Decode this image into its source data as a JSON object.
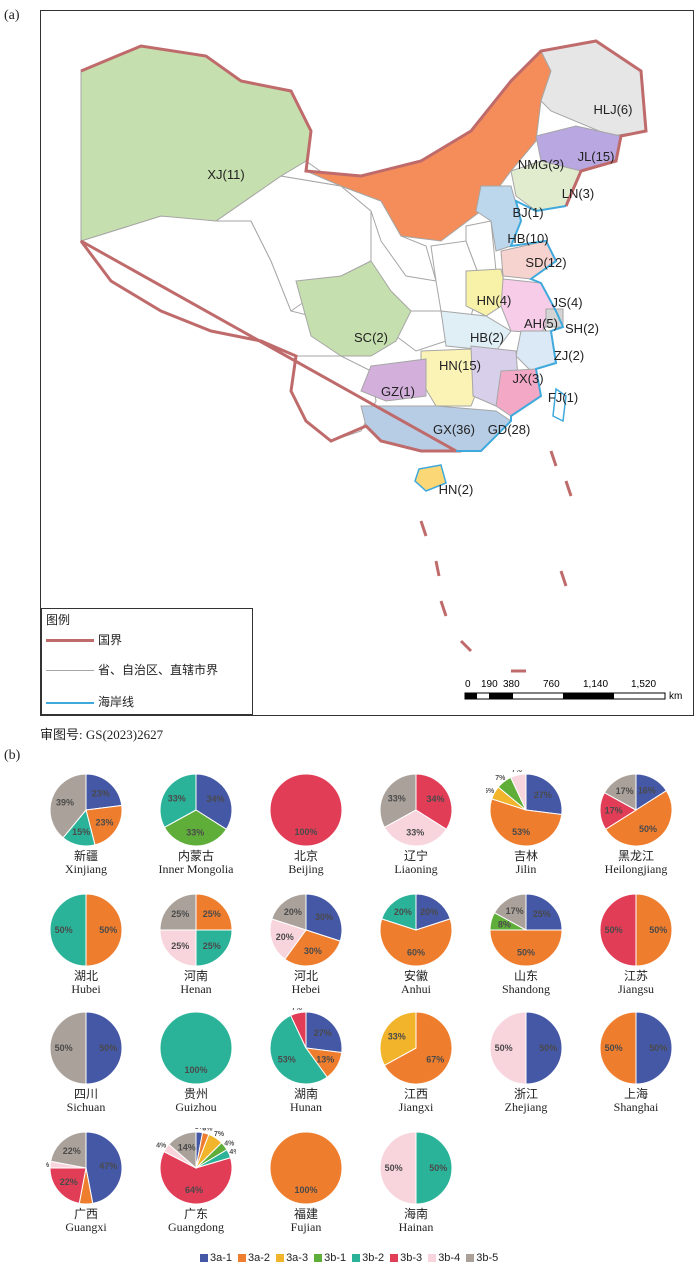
{
  "panel_a_label": "(a)",
  "panel_b_label": "(b)",
  "map": {
    "regions": [
      {
        "label": "XJ(11)",
        "fill": "#c6dfae"
      },
      {
        "label": "HLJ(6)",
        "fill": "#e6e6e6"
      },
      {
        "label": "NMG(3)",
        "fill": "#f48d5a"
      },
      {
        "label": "JL(15)",
        "fill": "#b8a7e0"
      },
      {
        "label": "LN(3)",
        "fill": "#e1eccf"
      },
      {
        "label": "BJ(1)",
        "fill": "#bcd6ec"
      },
      {
        "label": "HB(10)",
        "fill": "#bcd6ec"
      },
      {
        "label": "SD(12)",
        "fill": "#f6d3cf"
      },
      {
        "label": "HN(4)",
        "fill": "#f8f1a8"
      },
      {
        "label": "JS(4)",
        "fill": "#f6cce8"
      },
      {
        "label": "AH(5)",
        "fill": "#f6cce8"
      },
      {
        "label": "SH(2)",
        "fill": "#d4d4d4"
      },
      {
        "label": "SC(2)",
        "fill": "#c6dfae"
      },
      {
        "label": "HB(2)",
        "fill": "#dfeff5"
      },
      {
        "label": "ZJ(2)",
        "fill": "#dbe8f5"
      },
      {
        "label": "HN(15)",
        "fill": "#fbf2b6"
      },
      {
        "label": "JX(3)",
        "fill": "#d8cfea"
      },
      {
        "label": "GZ(1)",
        "fill": "#d3b0dc"
      },
      {
        "label": "FJ(1)",
        "fill": "#f3a8c6"
      },
      {
        "label": "GX(36)",
        "fill": "#b7cde6"
      },
      {
        "label": "GD(28)",
        "fill": "#b7cde6"
      },
      {
        "label": "HN(2)",
        "fill": "#fbd776"
      }
    ],
    "legend": {
      "title": "图例",
      "items": [
        {
          "label": "国界",
          "color": "#c06b6b"
        },
        {
          "label": "省、自治区、直辖市界",
          "color": "#a6a6a6"
        },
        {
          "label": "海岸线",
          "color": "#3fa9dc"
        }
      ]
    },
    "scale": {
      "ticks": [
        "0",
        "190",
        "380",
        "760",
        "1,140",
        "1,520"
      ],
      "unit": "km"
    }
  },
  "caption": "审图号: GS(2023)2627",
  "colors": {
    "3a-1": "#4558a6",
    "3a-2": "#ee7d2e",
    "3a-3": "#f2b42a",
    "3b-1": "#5fae3a",
    "3b-2": "#2bb39a",
    "3b-3": "#e23d57",
    "3b-4": "#f8d4dc",
    "3b-5": "#aaa19a"
  },
  "chart_data": {
    "type": "pie",
    "categories": [
      "3a-1",
      "3a-2",
      "3a-3",
      "3b-1",
      "3b-2",
      "3b-3",
      "3b-4",
      "3b-5"
    ],
    "pies": [
      {
        "name_cn": "新疆",
        "name_en": "Xinjiang",
        "slices": [
          {
            "cat": "3a-1",
            "value": 23,
            "label": "23%"
          },
          {
            "cat": "3a-2",
            "value": 23,
            "label": "23%"
          },
          {
            "cat": "3b-2",
            "value": 15,
            "label": "15%"
          },
          {
            "cat": "3b-5",
            "value": 39,
            "label": "39%"
          }
        ]
      },
      {
        "name_cn": "内蒙古",
        "name_en": "Inner Mongolia",
        "slices": [
          {
            "cat": "3a-1",
            "value": 34,
            "label": "34%"
          },
          {
            "cat": "3b-1",
            "value": 33,
            "label": "33%"
          },
          {
            "cat": "3b-2",
            "value": 33,
            "label": "33%"
          }
        ]
      },
      {
        "name_cn": "北京",
        "name_en": "Beijing",
        "slices": [
          {
            "cat": "3b-3",
            "value": 100,
            "label": "100%"
          }
        ]
      },
      {
        "name_cn": "辽宁",
        "name_en": "Liaoning",
        "slices": [
          {
            "cat": "3b-3",
            "value": 34,
            "label": "34%"
          },
          {
            "cat": "3b-4",
            "value": 33,
            "label": "33%"
          },
          {
            "cat": "3b-5",
            "value": 33,
            "label": "33%"
          }
        ]
      },
      {
        "name_cn": "吉林",
        "name_en": "Jilin",
        "slices": [
          {
            "cat": "3a-1",
            "value": 27,
            "label": "27%"
          },
          {
            "cat": "3a-2",
            "value": 53,
            "label": "53%"
          },
          {
            "cat": "3a-3",
            "value": 6,
            "label": "6%"
          },
          {
            "cat": "3b-1",
            "value": 7,
            "label": "7%"
          },
          {
            "cat": "3b-4",
            "value": 7,
            "label": "7%"
          }
        ]
      },
      {
        "name_cn": "黑龙江",
        "name_en": "Heilongjiang",
        "slices": [
          {
            "cat": "3a-1",
            "value": 16,
            "label": "16%"
          },
          {
            "cat": "3a-2",
            "value": 50,
            "label": "50%"
          },
          {
            "cat": "3b-3",
            "value": 17,
            "label": "17%"
          },
          {
            "cat": "3b-5",
            "value": 17,
            "label": "17%"
          }
        ]
      },
      {
        "name_cn": "湖北",
        "name_en": "Hubei",
        "slices": [
          {
            "cat": "3a-2",
            "value": 50,
            "label": "50%"
          },
          {
            "cat": "3b-2",
            "value": 50,
            "label": "50%"
          }
        ]
      },
      {
        "name_cn": "河南",
        "name_en": "Henan",
        "slices": [
          {
            "cat": "3a-2",
            "value": 25,
            "label": "25%"
          },
          {
            "cat": "3b-2",
            "value": 25,
            "label": "25%"
          },
          {
            "cat": "3b-4",
            "value": 25,
            "label": "25%"
          },
          {
            "cat": "3b-5",
            "value": 25,
            "label": "25%"
          }
        ]
      },
      {
        "name_cn": "河北",
        "name_en": "Hebei",
        "slices": [
          {
            "cat": "3a-1",
            "value": 30,
            "label": "30%"
          },
          {
            "cat": "3a-2",
            "value": 30,
            "label": "30%"
          },
          {
            "cat": "3b-4",
            "value": 20,
            "label": "20%"
          },
          {
            "cat": "3b-5",
            "value": 20,
            "label": "20%"
          }
        ]
      },
      {
        "name_cn": "安徽",
        "name_en": "Anhui",
        "slices": [
          {
            "cat": "3a-1",
            "value": 20,
            "label": "20%"
          },
          {
            "cat": "3a-2",
            "value": 60,
            "label": "60%"
          },
          {
            "cat": "3b-2",
            "value": 20,
            "label": "20%"
          }
        ]
      },
      {
        "name_cn": "山东",
        "name_en": "Shandong",
        "slices": [
          {
            "cat": "3a-1",
            "value": 25,
            "label": "25%"
          },
          {
            "cat": "3a-2",
            "value": 50,
            "label": "50%"
          },
          {
            "cat": "3b-1",
            "value": 8,
            "label": "8%"
          },
          {
            "cat": "3b-5",
            "value": 17,
            "label": "17%"
          }
        ]
      },
      {
        "name_cn": "江苏",
        "name_en": "Jiangsu",
        "slices": [
          {
            "cat": "3a-2",
            "value": 50,
            "label": "50%"
          },
          {
            "cat": "3b-3",
            "value": 50,
            "label": "50%"
          }
        ]
      },
      {
        "name_cn": "四川",
        "name_en": "Sichuan",
        "slices": [
          {
            "cat": "3a-1",
            "value": 50,
            "label": "50%"
          },
          {
            "cat": "3b-5",
            "value": 50,
            "label": "50%"
          }
        ]
      },
      {
        "name_cn": "贵州",
        "name_en": "Guizhou",
        "slices": [
          {
            "cat": "3b-2",
            "value": 100,
            "label": "100%"
          }
        ]
      },
      {
        "name_cn": "湖南",
        "name_en": "Hunan",
        "slices": [
          {
            "cat": "3a-1",
            "value": 27,
            "label": "27%"
          },
          {
            "cat": "3a-2",
            "value": 13,
            "label": "13%"
          },
          {
            "cat": "3b-2",
            "value": 53,
            "label": "53%"
          },
          {
            "cat": "3b-3",
            "value": 7,
            "label": "7%"
          }
        ]
      },
      {
        "name_cn": "江西",
        "name_en": "Jiangxi",
        "slices": [
          {
            "cat": "3a-2",
            "value": 67,
            "label": "67%"
          },
          {
            "cat": "3a-3",
            "value": 33,
            "label": "33%"
          }
        ]
      },
      {
        "name_cn": "浙江",
        "name_en": "Zhejiang",
        "slices": [
          {
            "cat": "3a-1",
            "value": 50,
            "label": "50%"
          },
          {
            "cat": "3b-4",
            "value": 50,
            "label": "50%"
          }
        ]
      },
      {
        "name_cn": "上海",
        "name_en": "Shanghai",
        "slices": [
          {
            "cat": "3a-1",
            "value": 50,
            "label": "50%"
          },
          {
            "cat": "3a-2",
            "value": 50,
            "label": "50%"
          }
        ]
      },
      {
        "name_cn": "广西",
        "name_en": "Guangxi",
        "slices": [
          {
            "cat": "3a-1",
            "value": 47,
            "label": "47%"
          },
          {
            "cat": "3a-2",
            "value": 6,
            "label": "6%"
          },
          {
            "cat": "3b-3",
            "value": 22,
            "label": "22%"
          },
          {
            "cat": "3b-4",
            "value": 3,
            "label": "3%"
          },
          {
            "cat": "3b-5",
            "value": 22,
            "label": "22%"
          }
        ]
      },
      {
        "name_cn": "广东",
        "name_en": "Guangdong",
        "slices": [
          {
            "cat": "3a-1",
            "value": 3,
            "label": "3%"
          },
          {
            "cat": "3a-2",
            "value": 3,
            "label": "3%"
          },
          {
            "cat": "3a-3",
            "value": 7,
            "label": "7%"
          },
          {
            "cat": "3b-1",
            "value": 4,
            "label": "4%"
          },
          {
            "cat": "3b-2",
            "value": 4,
            "label": "4%"
          },
          {
            "cat": "3b-3",
            "value": 64,
            "label": "64%"
          },
          {
            "cat": "3b-4",
            "value": 4,
            "label": "4%"
          },
          {
            "cat": "3b-5",
            "value": 14,
            "label": "14%"
          }
        ]
      },
      {
        "name_cn": "福建",
        "name_en": "Fujian",
        "slices": [
          {
            "cat": "3a-2",
            "value": 100,
            "label": "100%"
          }
        ]
      },
      {
        "name_cn": "海南",
        "name_en": "Hainan",
        "slices": [
          {
            "cat": "3b-2",
            "value": 50,
            "label": "50%"
          },
          {
            "cat": "3b-4",
            "value": 50,
            "label": "50%"
          }
        ]
      }
    ],
    "legend_position": "bottom"
  }
}
